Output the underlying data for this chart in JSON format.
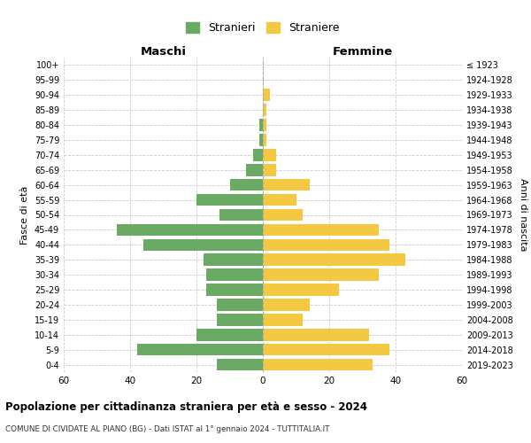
{
  "age_groups": [
    "0-4",
    "5-9",
    "10-14",
    "15-19",
    "20-24",
    "25-29",
    "30-34",
    "35-39",
    "40-44",
    "45-49",
    "50-54",
    "55-59",
    "60-64",
    "65-69",
    "70-74",
    "75-79",
    "80-84",
    "85-89",
    "90-94",
    "95-99",
    "100+"
  ],
  "birth_years": [
    "2019-2023",
    "2014-2018",
    "2009-2013",
    "2004-2008",
    "1999-2003",
    "1994-1998",
    "1989-1993",
    "1984-1988",
    "1979-1983",
    "1974-1978",
    "1969-1973",
    "1964-1968",
    "1959-1963",
    "1954-1958",
    "1949-1953",
    "1944-1948",
    "1939-1943",
    "1934-1938",
    "1929-1933",
    "1924-1928",
    "≤ 1923"
  ],
  "males": [
    14,
    38,
    20,
    14,
    14,
    17,
    17,
    18,
    36,
    44,
    13,
    20,
    10,
    5,
    3,
    1,
    1,
    0,
    0,
    0,
    0
  ],
  "females": [
    33,
    38,
    32,
    12,
    14,
    23,
    35,
    43,
    38,
    35,
    12,
    10,
    14,
    4,
    4,
    1,
    1,
    1,
    2,
    0,
    0
  ],
  "male_color": "#6aaa64",
  "female_color": "#f5c842",
  "male_label": "Stranieri",
  "female_label": "Straniere",
  "title": "Popolazione per cittadinanza straniera per età e sesso - 2024",
  "subtitle": "COMUNE DI CIVIDATE AL PIANO (BG) - Dati ISTAT al 1° gennaio 2024 - TUTTITALIA.IT",
  "xlabel_left": "Maschi",
  "xlabel_right": "Femmine",
  "ylabel_left": "Fasce di età",
  "ylabel_right": "Anni di nascita",
  "xlim": 60,
  "background_color": "#ffffff",
  "grid_color": "#cccccc"
}
